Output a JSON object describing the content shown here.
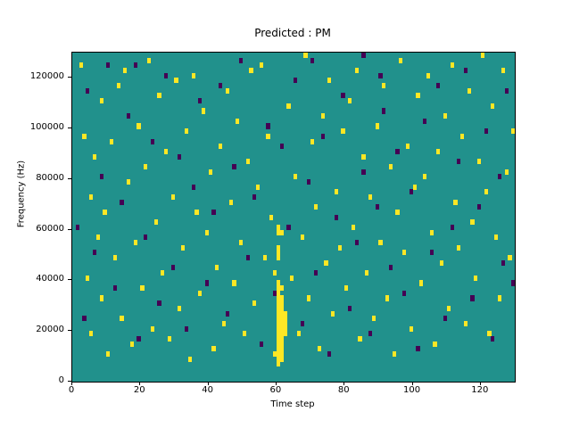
{
  "chart_data": {
    "type": "heatmap",
    "title": "Predicted : PM",
    "xlabel": "Time step",
    "ylabel": "Frequency (Hz)",
    "xlim": [
      0,
      130
    ],
    "ylim": [
      0,
      130000
    ],
    "x_ticks": [
      0,
      20,
      40,
      60,
      80,
      100,
      120
    ],
    "y_ticks": [
      0,
      20000,
      40000,
      60000,
      80000,
      100000,
      120000
    ],
    "grid": {
      "cols": 130,
      "rows": 65,
      "hz_per_row": 2000,
      "gridlines": false
    },
    "legend": "none",
    "colors": {
      "background": "#21918c",
      "yellow_cell": "#fde725",
      "purple_cell": "#440154",
      "axes": "#000000"
    },
    "cells": {
      "note": "cells given as [time_step, freq_bin]; freq bin b spans b*2000..(b+1)*2000 Hz",
      "yellow": [
        [
          2,
          62
        ],
        [
          3,
          48
        ],
        [
          4,
          20
        ],
        [
          5,
          9
        ],
        [
          5,
          36
        ],
        [
          6,
          44
        ],
        [
          7,
          28
        ],
        [
          8,
          16
        ],
        [
          8,
          55
        ],
        [
          9,
          33
        ],
        [
          10,
          5
        ],
        [
          11,
          47
        ],
        [
          12,
          24
        ],
        [
          13,
          58
        ],
        [
          14,
          12
        ],
        [
          15,
          61
        ],
        [
          16,
          39
        ],
        [
          17,
          7
        ],
        [
          18,
          27
        ],
        [
          19,
          50
        ],
        [
          20,
          18
        ],
        [
          21,
          42
        ],
        [
          22,
          63
        ],
        [
          23,
          10
        ],
        [
          24,
          31
        ],
        [
          25,
          56
        ],
        [
          26,
          21
        ],
        [
          27,
          45
        ],
        [
          28,
          8
        ],
        [
          29,
          36
        ],
        [
          30,
          59
        ],
        [
          31,
          14
        ],
        [
          32,
          26
        ],
        [
          33,
          49
        ],
        [
          34,
          4
        ],
        [
          35,
          60
        ],
        [
          36,
          33
        ],
        [
          37,
          17
        ],
        [
          38,
          53
        ],
        [
          39,
          29
        ],
        [
          40,
          41
        ],
        [
          41,
          6
        ],
        [
          42,
          22
        ],
        [
          43,
          46
        ],
        [
          44,
          11
        ],
        [
          45,
          57
        ],
        [
          46,
          35
        ],
        [
          47,
          19
        ],
        [
          48,
          51
        ],
        [
          49,
          27
        ],
        [
          50,
          9
        ],
        [
          51,
          43
        ],
        [
          52,
          61
        ],
        [
          53,
          15
        ],
        [
          54,
          38
        ],
        [
          55,
          62
        ],
        [
          56,
          24
        ],
        [
          57,
          48
        ],
        [
          58,
          32
        ],
        [
          59,
          5
        ],
        [
          59,
          21
        ],
        [
          60,
          3
        ],
        [
          60,
          4
        ],
        [
          60,
          5
        ],
        [
          60,
          6
        ],
        [
          60,
          7
        ],
        [
          60,
          8
        ],
        [
          60,
          9
        ],
        [
          60,
          10
        ],
        [
          60,
          11
        ],
        [
          60,
          12
        ],
        [
          60,
          13
        ],
        [
          60,
          14
        ],
        [
          60,
          15
        ],
        [
          60,
          16
        ],
        [
          60,
          17
        ],
        [
          60,
          18
        ],
        [
          60,
          19
        ],
        [
          60,
          24
        ],
        [
          60,
          25
        ],
        [
          60,
          26
        ],
        [
          60,
          29
        ],
        [
          60,
          30
        ],
        [
          61,
          4
        ],
        [
          61,
          5
        ],
        [
          61,
          6
        ],
        [
          61,
          7
        ],
        [
          61,
          8
        ],
        [
          61,
          9
        ],
        [
          61,
          10
        ],
        [
          61,
          11
        ],
        [
          61,
          12
        ],
        [
          61,
          13
        ],
        [
          61,
          14
        ],
        [
          61,
          15
        ],
        [
          61,
          16
        ],
        [
          61,
          18
        ],
        [
          61,
          29
        ],
        [
          62,
          9
        ],
        [
          62,
          10
        ],
        [
          62,
          11
        ],
        [
          62,
          12
        ],
        [
          62,
          13
        ],
        [
          63,
          54
        ],
        [
          64,
          20
        ],
        [
          65,
          40
        ],
        [
          66,
          9
        ],
        [
          67,
          28
        ],
        [
          68,
          64
        ],
        [
          69,
          16
        ],
        [
          70,
          47
        ],
        [
          71,
          34
        ],
        [
          72,
          6
        ],
        [
          73,
          52
        ],
        [
          74,
          23
        ],
        [
          75,
          59
        ],
        [
          76,
          13
        ],
        [
          77,
          37
        ],
        [
          78,
          26
        ],
        [
          79,
          49
        ],
        [
          80,
          18
        ],
        [
          81,
          55
        ],
        [
          82,
          30
        ],
        [
          83,
          61
        ],
        [
          84,
          8
        ],
        [
          85,
          44
        ],
        [
          86,
          21
        ],
        [
          87,
          36
        ],
        [
          88,
          12
        ],
        [
          89,
          50
        ],
        [
          90,
          27
        ],
        [
          91,
          58
        ],
        [
          92,
          16
        ],
        [
          93,
          42
        ],
        [
          94,
          5
        ],
        [
          95,
          33
        ],
        [
          96,
          63
        ],
        [
          97,
          25
        ],
        [
          98,
          46
        ],
        [
          99,
          10
        ],
        [
          100,
          38
        ],
        [
          101,
          56
        ],
        [
          102,
          19
        ],
        [
          103,
          40
        ],
        [
          104,
          60
        ],
        [
          105,
          29
        ],
        [
          106,
          7
        ],
        [
          107,
          45
        ],
        [
          108,
          23
        ],
        [
          109,
          52
        ],
        [
          110,
          14
        ],
        [
          111,
          62
        ],
        [
          112,
          35
        ],
        [
          113,
          26
        ],
        [
          114,
          48
        ],
        [
          115,
          11
        ],
        [
          116,
          57
        ],
        [
          117,
          31
        ],
        [
          118,
          20
        ],
        [
          119,
          43
        ],
        [
          120,
          64
        ],
        [
          121,
          37
        ],
        [
          122,
          9
        ],
        [
          123,
          54
        ],
        [
          124,
          28
        ],
        [
          125,
          16
        ],
        [
          126,
          61
        ],
        [
          127,
          41
        ],
        [
          128,
          24
        ],
        [
          129,
          49
        ]
      ],
      "purple": [
        [
          1,
          30
        ],
        [
          3,
          12
        ],
        [
          4,
          57
        ],
        [
          6,
          25
        ],
        [
          8,
          40
        ],
        [
          10,
          62
        ],
        [
          12,
          18
        ],
        [
          14,
          35
        ],
        [
          16,
          52
        ],
        [
          18,
          62
        ],
        [
          19,
          8
        ],
        [
          21,
          28
        ],
        [
          23,
          47
        ],
        [
          25,
          15
        ],
        [
          27,
          60
        ],
        [
          29,
          22
        ],
        [
          31,
          44
        ],
        [
          33,
          10
        ],
        [
          35,
          38
        ],
        [
          37,
          55
        ],
        [
          39,
          19
        ],
        [
          41,
          33
        ],
        [
          43,
          58
        ],
        [
          45,
          13
        ],
        [
          47,
          42
        ],
        [
          49,
          63
        ],
        [
          51,
          24
        ],
        [
          53,
          36
        ],
        [
          55,
          7
        ],
        [
          57,
          50
        ],
        [
          59,
          17
        ],
        [
          61,
          46
        ],
        [
          63,
          30
        ],
        [
          65,
          59
        ],
        [
          67,
          11
        ],
        [
          69,
          39
        ],
        [
          70,
          63
        ],
        [
          71,
          21
        ],
        [
          73,
          48
        ],
        [
          75,
          5
        ],
        [
          77,
          32
        ],
        [
          79,
          56
        ],
        [
          81,
          14
        ],
        [
          83,
          27
        ],
        [
          85,
          64
        ],
        [
          85,
          41
        ],
        [
          87,
          9
        ],
        [
          89,
          34
        ],
        [
          90,
          60
        ],
        [
          91,
          53
        ],
        [
          93,
          22
        ],
        [
          95,
          45
        ],
        [
          97,
          17
        ],
        [
          99,
          37
        ],
        [
          101,
          6
        ],
        [
          103,
          51
        ],
        [
          105,
          25
        ],
        [
          107,
          58
        ],
        [
          109,
          12
        ],
        [
          111,
          30
        ],
        [
          113,
          43
        ],
        [
          115,
          61
        ],
        [
          117,
          16
        ],
        [
          119,
          34
        ],
        [
          121,
          49
        ],
        [
          123,
          8
        ],
        [
          125,
          40
        ],
        [
          126,
          23
        ],
        [
          127,
          57
        ],
        [
          129,
          19
        ]
      ]
    }
  }
}
